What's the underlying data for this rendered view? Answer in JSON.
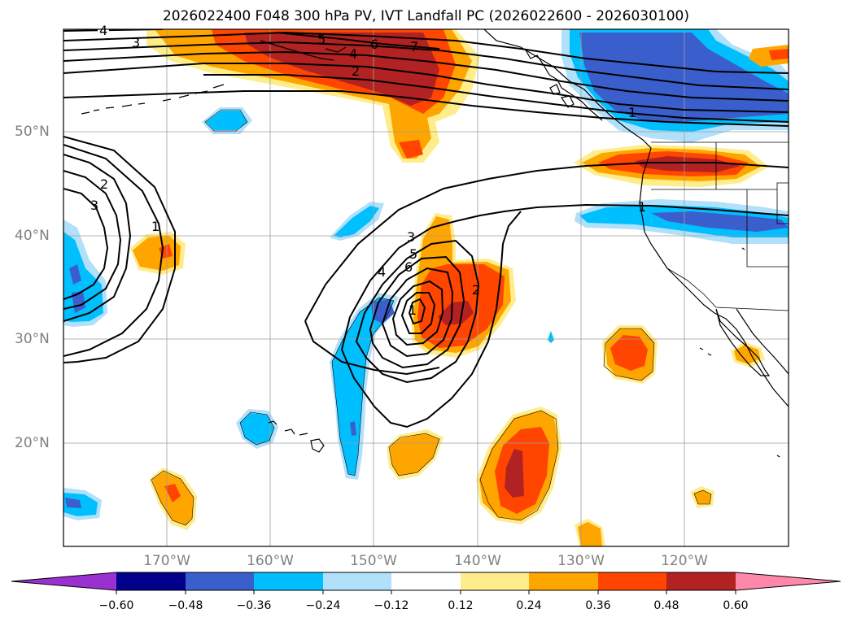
{
  "title": "2026022400 F048 300 hPa PV, IVT Landfall PC (2026022600 - 2026030100)",
  "lat_labels": [
    "50°N",
    "40°N",
    "30°N",
    "20°N"
  ],
  "lon_labels": [
    "170°W",
    "160°W",
    "150°W",
    "140°W",
    "130°W",
    "120°W"
  ],
  "colorbar": {
    "ticks": [
      "−0.60",
      "−0.48",
      "−0.36",
      "−0.24",
      "−0.12",
      "0.12",
      "0.24",
      "0.36",
      "0.48",
      "0.60"
    ],
    "colors": [
      "#9b30d0",
      "#00008b",
      "#3a5fcd",
      "#00bfff",
      "#b0e0fa",
      "#ffffff",
      "#ffec8b",
      "#ffa500",
      "#ff4500",
      "#b22222",
      "#ff88aa"
    ]
  },
  "contour_labels": [
    "4",
    "3",
    "5",
    "6",
    "7",
    "4",
    "2",
    "1",
    "2",
    "3",
    "1",
    "3",
    "5",
    "6",
    "4",
    "1",
    "2",
    "1"
  ]
}
